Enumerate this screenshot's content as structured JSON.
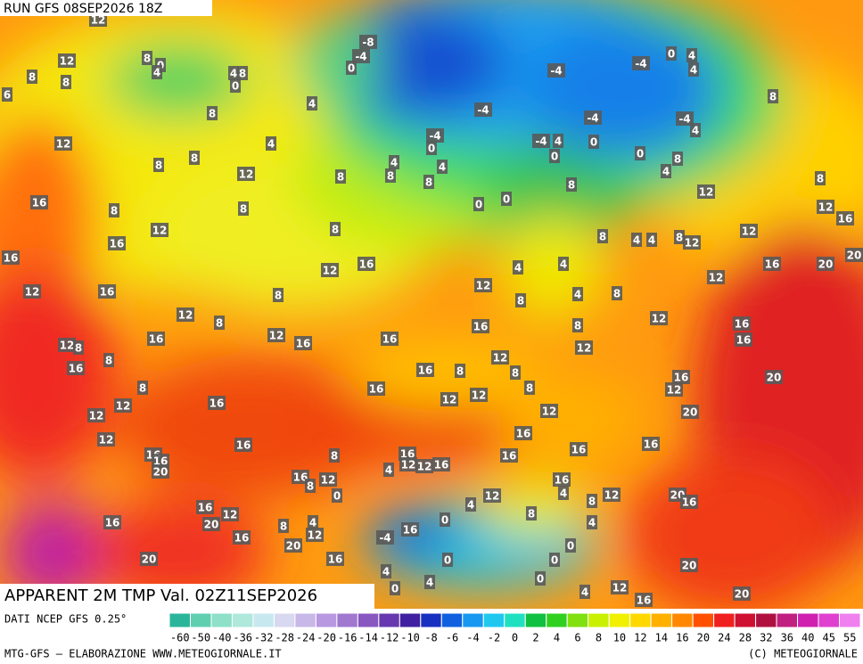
{
  "header": {
    "run": "RUN GFS 08SEP2026 18Z"
  },
  "map": {
    "labels": [
      12,
      12,
      8,
      0,
      4,
      4,
      8,
      0,
      8,
      8,
      6,
      4,
      8,
      -8,
      -4,
      0,
      -4,
      -4,
      0,
      4,
      4,
      8,
      -4,
      -4,
      -4,
      4,
      -4,
      0,
      -4,
      4,
      0,
      0,
      0,
      8,
      4,
      12,
      8,
      4,
      8,
      12,
      8,
      4,
      8,
      4,
      8,
      8,
      12,
      8,
      16,
      8,
      8,
      0,
      0,
      12,
      16,
      12,
      8,
      8,
      4,
      4,
      8,
      12,
      12,
      16,
      16,
      16,
      4,
      4,
      16,
      20,
      20,
      12,
      12,
      16,
      8,
      12,
      4,
      8,
      8,
      12,
      12,
      8,
      12,
      16,
      12,
      16,
      16,
      16,
      8,
      16,
      12,
      8,
      16,
      12,
      8,
      16,
      16,
      8,
      12,
      8,
      20,
      8,
      16,
      12,
      12,
      8,
      16,
      12,
      12,
      16,
      12,
      12,
      20,
      12,
      16,
      16,
      16,
      16,
      16,
      16,
      20,
      8,
      16,
      12,
      12,
      16,
      16,
      4,
      16,
      8,
      12,
      0,
      16,
      4,
      12,
      4,
      8,
      12,
      20,
      16,
      16,
      12,
      8,
      16,
      20,
      8,
      4,
      12,
      0,
      4,
      16,
      -4,
      16,
      20,
      0,
      16,
      0,
      0,
      20,
      20,
      4,
      0,
      4,
      0,
      4,
      12,
      16,
      20
    ]
  },
  "footer": {
    "title": "APPARENT 2M TMP Val. 02Z11SEP2026",
    "source": "DATI NCEP GFS 0.25°",
    "credit": "MTG-GFS — ELABORAZIONE WWW.METEOGIORNALE.IT",
    "copyright": "(C) METEOGIORNALE"
  },
  "colorbar": {
    "ticks": [
      -60,
      -50,
      -40,
      -36,
      -32,
      -28,
      -24,
      -20,
      -16,
      -14,
      -12,
      -10,
      -8,
      -6,
      -4,
      -2,
      0,
      2,
      4,
      6,
      8,
      10,
      12,
      14,
      16,
      20,
      24,
      28,
      32,
      36,
      40,
      45,
      55
    ],
    "colors": [
      "#2ab59a",
      "#5fcfb0",
      "#8ee0c8",
      "#b0e8dc",
      "#c8e8f0",
      "#d8d8f0",
      "#c8b8e8",
      "#b898e0",
      "#a078d0",
      "#8858c0",
      "#6838b0",
      "#4020a0",
      "#1830c0",
      "#1060e0",
      "#1898f0",
      "#20c8f0",
      "#20e0c0",
      "#10c040",
      "#30d020",
      "#80e010",
      "#c8f000",
      "#f0f000",
      "#ffd800",
      "#ffb000",
      "#ff8800",
      "#ff5000",
      "#f02020",
      "#d01030",
      "#b01040",
      "#c02080",
      "#d020b0",
      "#e040d0",
      "#f080f0"
    ]
  }
}
